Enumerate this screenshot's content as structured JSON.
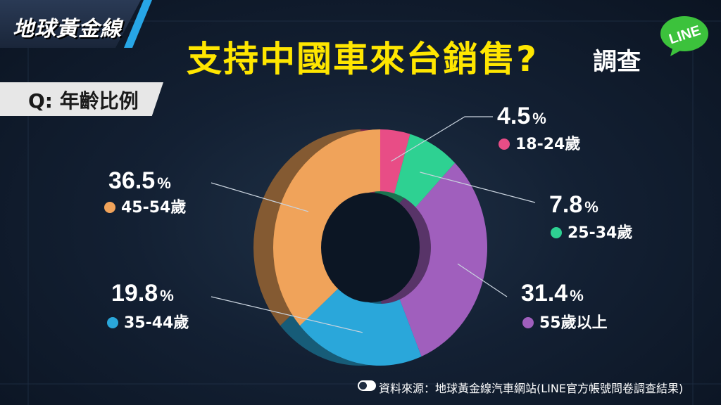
{
  "header": {
    "logo_text": "地球黃金線",
    "title": "支持中國車來台銷售?",
    "title_suffix": "調查",
    "line_badge": "LINE"
  },
  "question": {
    "label": "Q: 年齡比例"
  },
  "source": {
    "text": "資料來源：地球黃金線汽車網站(LINE官方帳號問卷調查結果)"
  },
  "colors": {
    "title": "#ffe600",
    "line_green": "#3cc23c",
    "accent": "#27a6e6"
  },
  "chart_data": {
    "type": "pie",
    "style": "donut-3d",
    "slices": [
      {
        "label": "18-24歲",
        "value": 4.5,
        "value_text": "4.5",
        "color": "#e84d86"
      },
      {
        "label": "25-34歲",
        "value": 7.8,
        "value_text": "7.8",
        "color": "#2ed192"
      },
      {
        "label": "55歲以上",
        "value": 31.4,
        "value_text": "31.4",
        "color": "#a05fbd"
      },
      {
        "label": "35-44歲",
        "value": 19.8,
        "value_text": "19.8",
        "color": "#2aa7da"
      },
      {
        "label": "45-54歲",
        "value": 36.5,
        "value_text": "36.5",
        "color": "#f0a35a"
      }
    ],
    "percent_sign": "%"
  }
}
